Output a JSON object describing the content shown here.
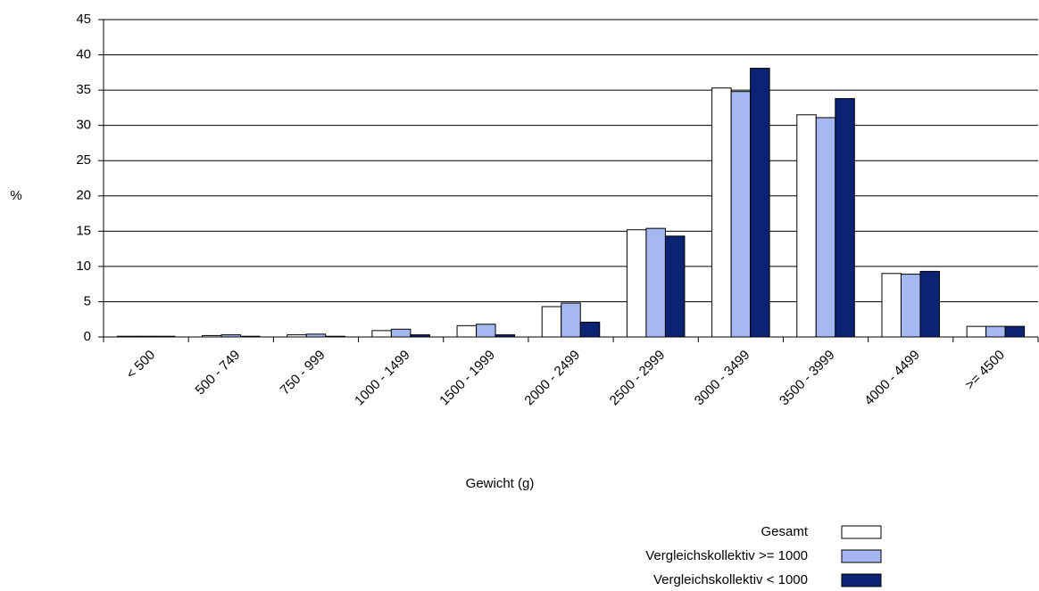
{
  "chart_data": {
    "type": "bar",
    "x_label": "Gewicht (g)",
    "y_label": "%",
    "categories": [
      "< 500",
      "500 - 749",
      "750 - 999",
      "1000 - 1499",
      "1500 - 1999",
      "2000 - 2499",
      "2500 - 2999",
      "3000 - 3499",
      "3500 - 3999",
      "4000 - 4499",
      ">= 4500"
    ],
    "series": [
      {
        "name": "Gesamt",
        "color": "#ffffff",
        "values": [
          0.1,
          0.2,
          0.3,
          0.9,
          1.6,
          4.3,
          15.2,
          35.3,
          31.5,
          9.0,
          1.5
        ]
      },
      {
        "name": "Vergleichskollektiv >= 1000",
        "color": "#a6b8f0",
        "values": [
          0.1,
          0.3,
          0.4,
          1.1,
          1.8,
          4.8,
          15.4,
          34.8,
          31.1,
          8.9,
          1.5
        ]
      },
      {
        "name": "Vergleichskollektiv < 1000",
        "color": "#0a2373",
        "values": [
          0.1,
          0.1,
          0.1,
          0.3,
          0.3,
          2.1,
          14.3,
          38.1,
          33.8,
          9.3,
          1.5
        ]
      }
    ],
    "ylim": [
      0,
      45
    ],
    "yticks": [
      0,
      5,
      10,
      15,
      20,
      25,
      30,
      35,
      40,
      45
    ],
    "grid": true,
    "legend": "bottom-right"
  }
}
